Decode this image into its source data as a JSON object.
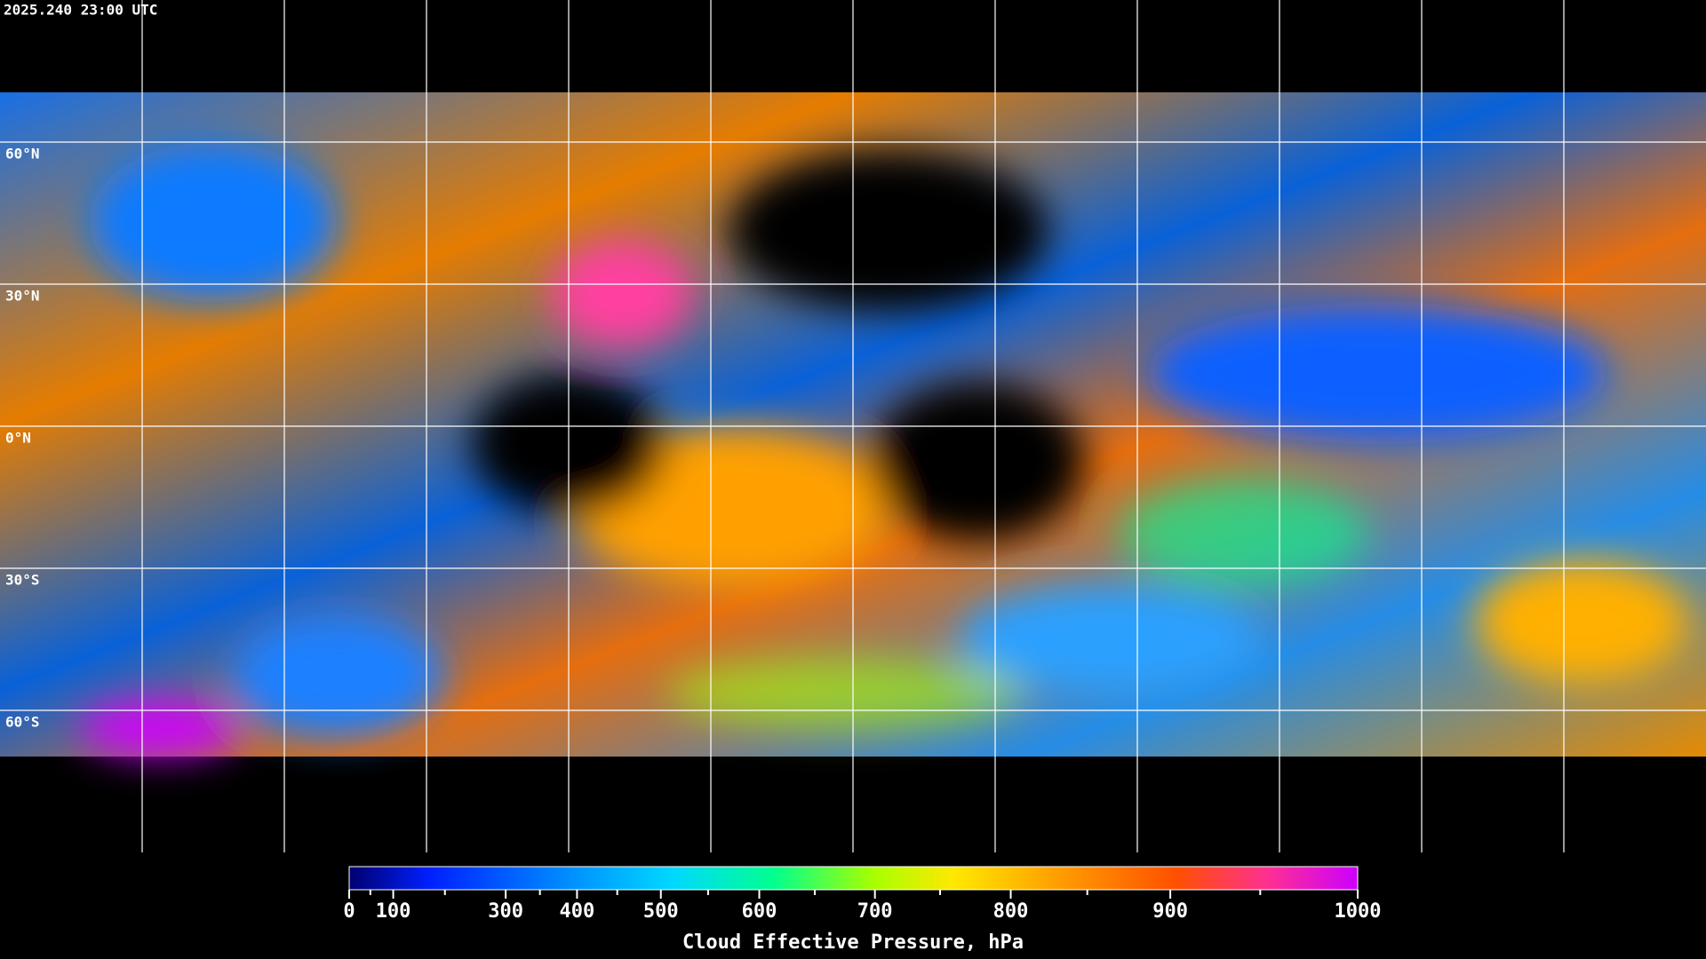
{
  "header": {
    "timestamp": "2025.240 23:00 UTC"
  },
  "map": {
    "latitude_lines": [
      {
        "value": 60,
        "label": "60°N"
      },
      {
        "value": 30,
        "label": "30°N"
      },
      {
        "value": 0,
        "label": "0°N"
      },
      {
        "value": -30,
        "label": "30°S"
      },
      {
        "value": -60,
        "label": "60°S"
      }
    ],
    "longitude_step": 30
  },
  "colorbar": {
    "label": "Cloud Effective Pressure, hPa",
    "lim": [
      0,
      1000
    ],
    "ticks": [
      0,
      100,
      300,
      400,
      500,
      600,
      700,
      800,
      900,
      1000
    ],
    "minor_ticks": [
      50,
      200,
      350,
      450,
      550,
      650,
      750,
      850,
      950
    ]
  }
}
